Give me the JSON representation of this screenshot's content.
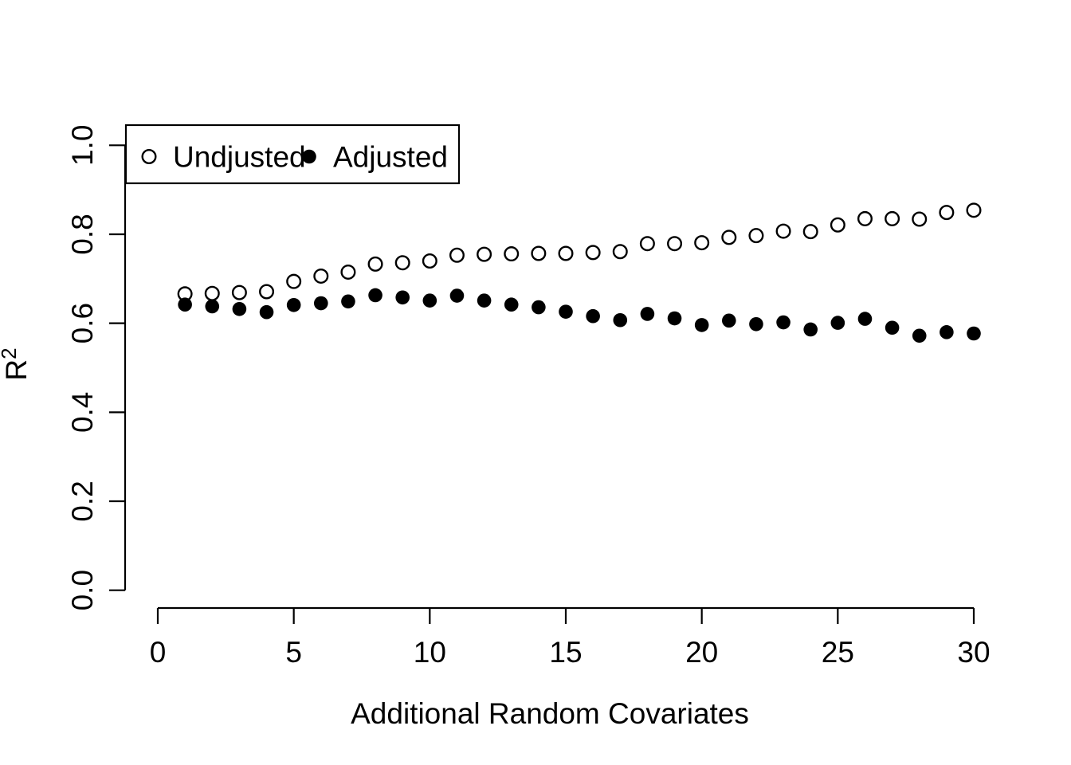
{
  "figure": {
    "background": "#ffffff",
    "foreground": "#000000"
  },
  "chart_data": {
    "type": "scatter",
    "title": "",
    "xlabel": "Additional Random Covariates",
    "ylabel": "R²",
    "ylabel_base": "R",
    "ylabel_superscript": "2",
    "xlim": [
      0,
      30
    ],
    "ylim": [
      0.0,
      1.0
    ],
    "x_tick_values": [
      0,
      5,
      10,
      15,
      20,
      25,
      30
    ],
    "x_tick_labels": [
      "0",
      "5",
      "10",
      "15",
      "20",
      "25",
      "30"
    ],
    "y_tick_values": [
      0.0,
      0.2,
      0.4,
      0.6,
      0.8,
      1.0
    ],
    "y_tick_labels": [
      "0.0",
      "0.2",
      "0.4",
      "0.6",
      "0.8",
      "1.0"
    ],
    "grid": false,
    "box": "L-shaped-axes",
    "axis_color": "#000000",
    "marker_colors": {
      "open_fill": "#ffffff",
      "open_stroke": "#000000",
      "filled_fill": "#000000"
    },
    "legend": {
      "position": "topleft",
      "border": true,
      "entries": [
        {
          "label": "Undjusted",
          "marker": "open-circle"
        },
        {
          "label": "Adjusted",
          "marker": "filled-circle"
        }
      ]
    },
    "x": [
      1,
      2,
      3,
      4,
      5,
      6,
      7,
      8,
      9,
      10,
      11,
      12,
      13,
      14,
      15,
      16,
      17,
      18,
      19,
      20,
      21,
      22,
      23,
      24,
      25,
      26,
      27,
      28,
      29,
      30
    ],
    "series": [
      {
        "name": "Undjusted",
        "marker": "open-circle",
        "values": [
          0.666,
          0.667,
          0.669,
          0.671,
          0.694,
          0.706,
          0.715,
          0.733,
          0.736,
          0.74,
          0.753,
          0.755,
          0.756,
          0.757,
          0.757,
          0.759,
          0.761,
          0.779,
          0.779,
          0.781,
          0.793,
          0.797,
          0.807,
          0.806,
          0.821,
          0.835,
          0.835,
          0.834,
          0.849,
          0.854
        ]
      },
      {
        "name": "Adjusted",
        "marker": "filled-circle",
        "values": [
          0.642,
          0.638,
          0.632,
          0.625,
          0.641,
          0.645,
          0.649,
          0.663,
          0.658,
          0.651,
          0.662,
          0.651,
          0.642,
          0.636,
          0.626,
          0.616,
          0.607,
          0.621,
          0.611,
          0.596,
          0.606,
          0.598,
          0.602,
          0.586,
          0.601,
          0.61,
          0.59,
          0.572,
          0.58,
          0.577
        ]
      }
    ]
  }
}
